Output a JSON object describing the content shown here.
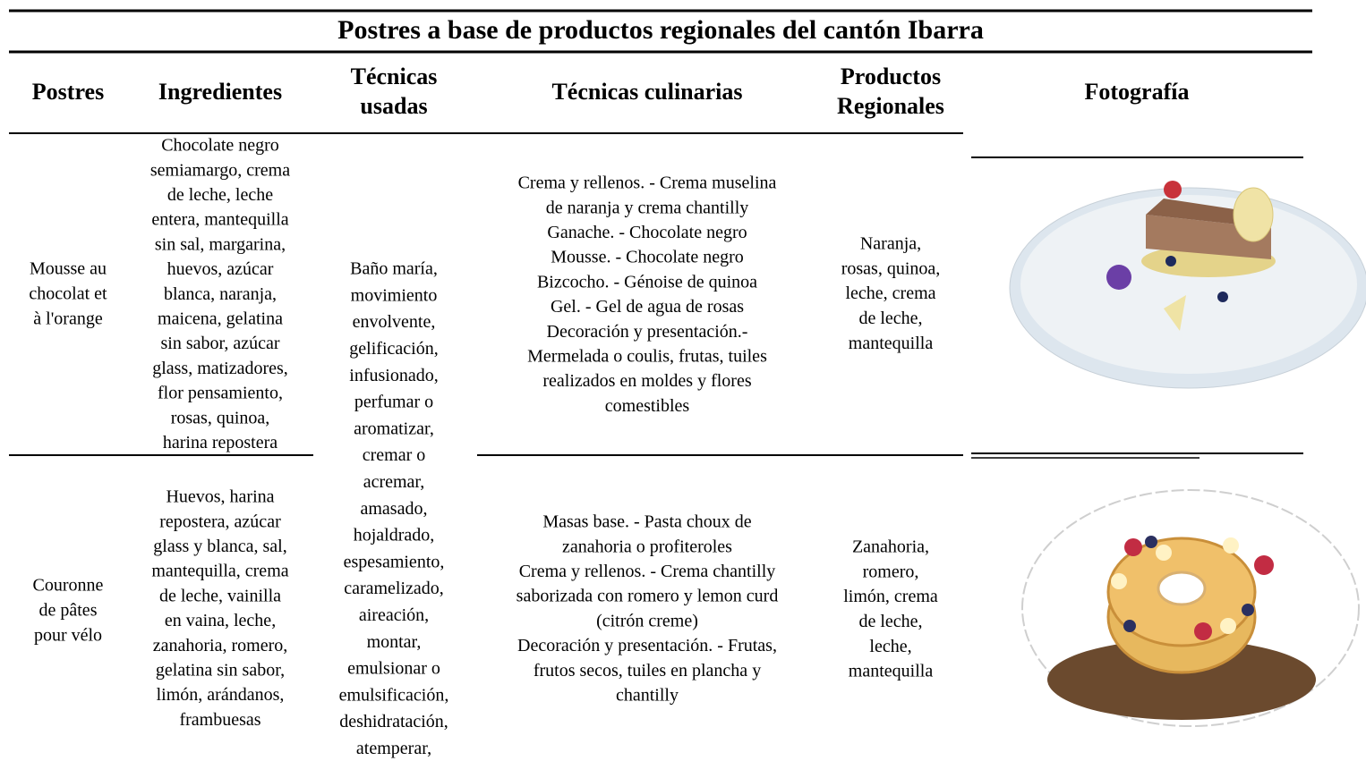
{
  "title": "Postres a base de productos regionales del cantón Ibarra",
  "headers": [
    [
      "Postres"
    ],
    [
      "Ingredientes"
    ],
    [
      "Técnicas",
      "usadas"
    ],
    [
      "Técnicas culinarias"
    ],
    [
      "Productos",
      "Regionales"
    ],
    [
      "Fotografía"
    ]
  ],
  "shared_techniques": [
    "Baño maría,",
    "movimiento",
    "envolvente,",
    "gelificación,",
    "infusionado,",
    "perfumar o",
    "aromatizar,",
    "cremar o",
    "acremar,",
    "amasado,",
    "hojaldrado,",
    "espesamiento,",
    "caramelizado,",
    "aireación,",
    "montar,",
    "emulsionar o",
    "emulsificación,",
    "deshidratación,",
    "atemperar,"
  ],
  "rows": [
    {
      "postre": [
        "Mousse au",
        "chocolat et",
        "à l'orange"
      ],
      "ingredientes": [
        "Chocolate negro",
        "semiamargo, crema",
        "de leche, leche",
        "entera, mantequilla",
        "sin sal, margarina,",
        "huevos, azúcar",
        "blanca, naranja,",
        "maicena, gelatina",
        "sin sabor, azúcar",
        "glass, matizadores,",
        "flor pensamiento,",
        "rosas, quinoa,",
        "harina repostera"
      ],
      "tecnicas_culinarias": [
        "Crema y rellenos. - Crema muselina",
        "de naranja y crema chantilly",
        "Ganache. - Chocolate negro",
        "Mousse. - Chocolate negro",
        "Bizcocho. - Génoise de quinoa",
        "Gel. - Gel de agua de rosas",
        "Decoración y presentación.-",
        "Mermelada o coulis, frutas, tuiles",
        "realizados en moldes y flores",
        "comestibles"
      ],
      "productos": [
        "Naranja,",
        "rosas, quinoa,",
        "leche, crema",
        "de leche,",
        "mantequilla"
      ]
    },
    {
      "postre": [
        "Couronne",
        "de pâtes",
        "pour vélo"
      ],
      "ingredientes": [
        "Huevos, harina",
        "repostera, azúcar",
        "glass y blanca, sal,",
        "mantequilla, crema",
        "de leche, vainilla",
        "en vaina, leche,",
        "zanahoria, romero,",
        "gelatina sin sabor,",
        "limón, arándanos,",
        "frambuesas"
      ],
      "tecnicas_culinarias": [
        "Masas base. - Pasta choux de",
        "zanahoria o profiteroles",
        "Crema y rellenos. - Crema chantilly",
        "saborizada con romero y lemon curd",
        "(citrón creme)",
        "Decoración y presentación. - Frutas,",
        "frutos secos, tuiles en plancha y",
        "chantilly"
      ],
      "productos": [
        "Zanahoria,",
        "romero,",
        "limón, crema",
        "de leche,",
        "leche,",
        "mantequilla"
      ]
    }
  ]
}
